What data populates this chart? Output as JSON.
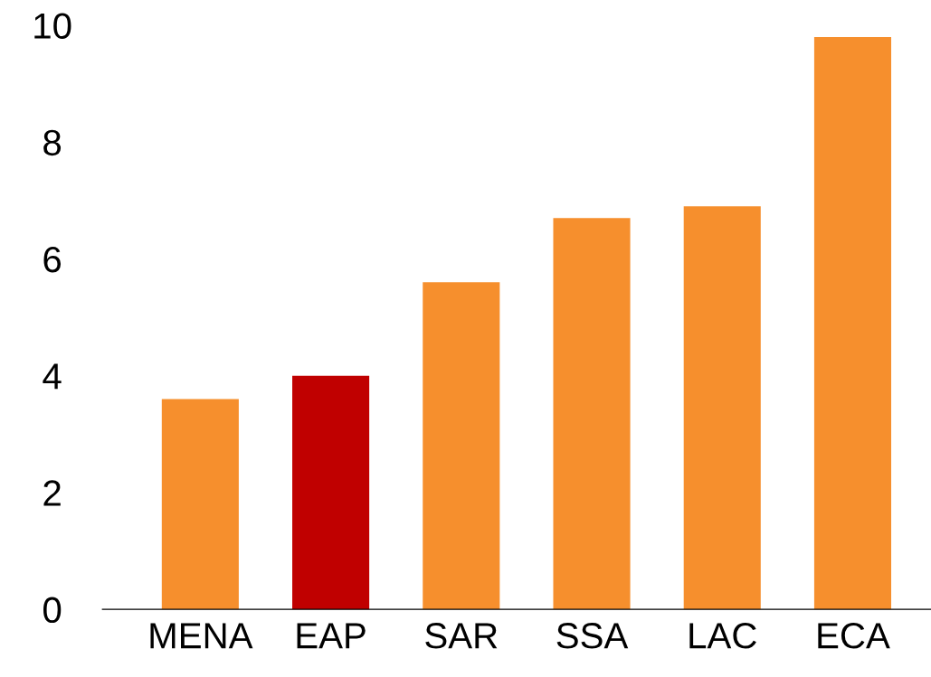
{
  "chart_data": {
    "type": "bar",
    "categories": [
      "MENA",
      "EAP",
      "SAR",
      "SSA",
      "LAC",
      "ECA"
    ],
    "values": [
      3.6,
      4.0,
      5.6,
      6.7,
      6.9,
      9.8
    ],
    "colors": [
      "#f68f2d",
      "#c00000",
      "#f68f2d",
      "#f68f2d",
      "#f68f2d",
      "#f68f2d"
    ],
    "ylim": [
      0,
      10
    ],
    "yticks": [
      0,
      2,
      4,
      6,
      8,
      10
    ],
    "grid": false,
    "legend": false
  }
}
